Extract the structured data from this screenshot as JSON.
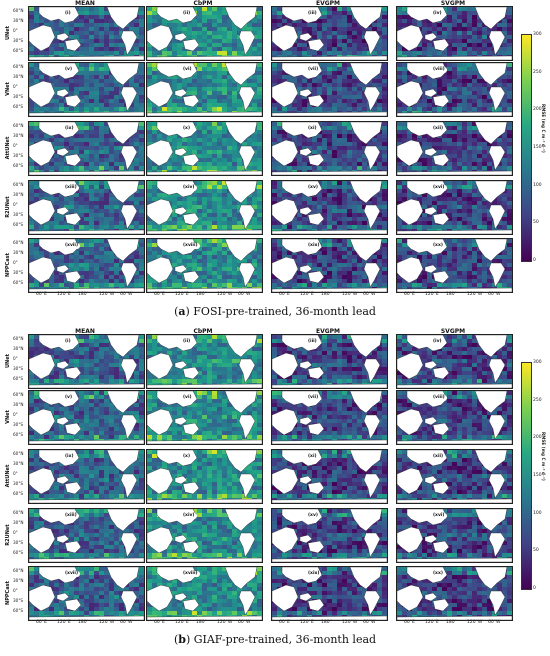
{
  "chart_data": [
    {
      "type": "heatmap",
      "caption_letter": "a",
      "caption_text": "FOSI-pre-trained, 36-month lead",
      "columns": [
        "MEAN",
        "CbPM",
        "EVGPM",
        "SVGPM"
      ],
      "rows": [
        "UNet",
        "VNet",
        "AttUNet",
        "R2UNet",
        "NPPCast"
      ],
      "panel_tags": [
        "(i)",
        "(ii)",
        "(iii)",
        "(iv)",
        "(v)",
        "(vi)",
        "(vii)",
        "(viii)",
        "(ix)",
        "(x)",
        "(xi)",
        "(xii)",
        "(xiii)",
        "(xiv)",
        "(xv)",
        "(xvi)",
        "(xvii)",
        "(xviii)",
        "(xix)",
        "(xx)"
      ],
      "lat_ticks": [
        "60°N",
        "30°N",
        "0°",
        "30°S",
        "60°S"
      ],
      "lon_ticks": [
        "60°E",
        "120°E",
        "180°",
        "120°W",
        "60°W"
      ],
      "colorbar": {
        "label": "RMSE (mg C m⁻² d⁻¹)",
        "ticks": [
          "300",
          "250",
          "200",
          "150",
          "100",
          "50",
          "0"
        ],
        "range": [
          0,
          300
        ],
        "colormap": "viridis"
      }
    },
    {
      "type": "heatmap",
      "caption_letter": "b",
      "caption_text": "GIAF-pre-trained, 36-month lead",
      "columns": [
        "MEAN",
        "CbPM",
        "EVGPM",
        "SVGPM"
      ],
      "rows": [
        "UNet",
        "VNet",
        "AttUNet",
        "R2UNet",
        "NPPCast"
      ],
      "panel_tags": [
        "(i)",
        "(ii)",
        "(iii)",
        "(iv)",
        "(v)",
        "(vi)",
        "(vii)",
        "(viii)",
        "(ix)",
        "(x)",
        "(xi)",
        "(xii)",
        "(xiii)",
        "(xiv)",
        "(xv)",
        "(xvi)",
        "(xvii)",
        "(xviii)",
        "(xix)",
        "(xx)"
      ],
      "lat_ticks": [
        "60°N",
        "30°N",
        "0°",
        "30°S",
        "60°S"
      ],
      "lon_ticks": [
        "60°E",
        "120°E",
        "180°",
        "120°W",
        "60°W"
      ],
      "colorbar": {
        "label": "RMSE (mg C m⁻² d⁻¹)",
        "ticks": [
          "300",
          "250",
          "200",
          "150",
          "100",
          "50",
          "0"
        ],
        "range": [
          0,
          300
        ],
        "colormap": "viridis"
      }
    }
  ]
}
